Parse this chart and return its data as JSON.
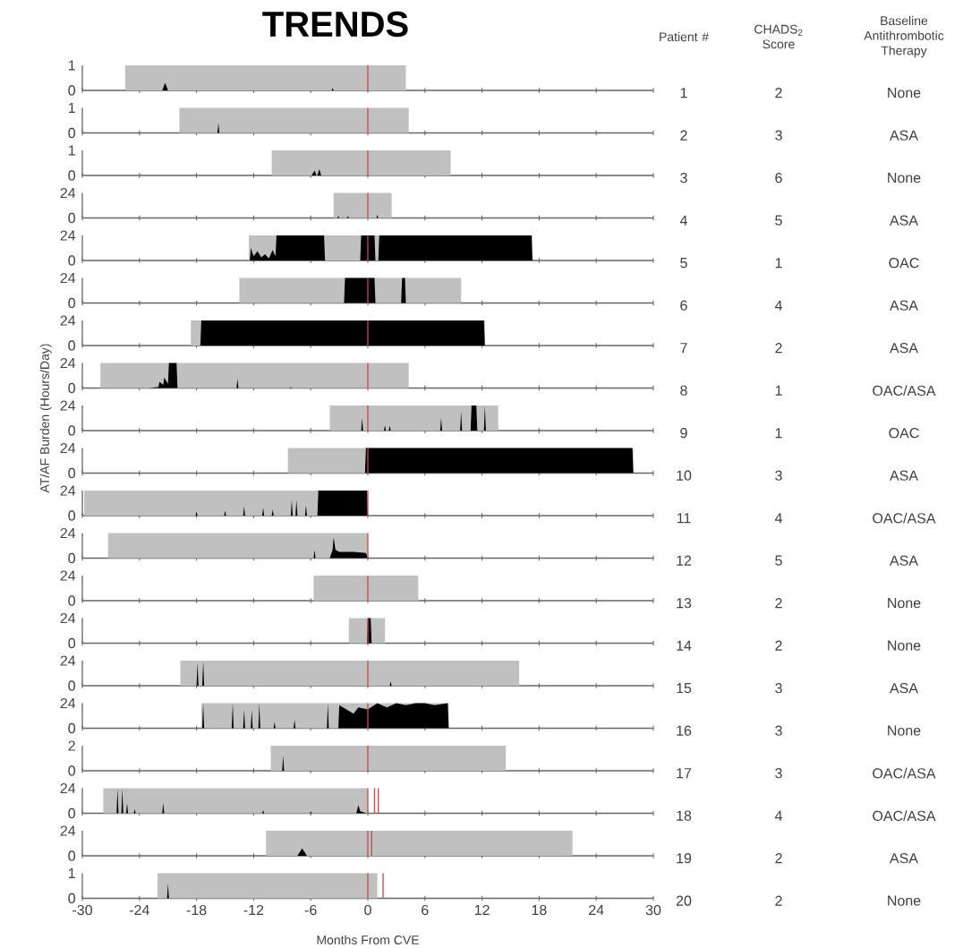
{
  "chart_data": [
    {
      "type": "area",
      "title": "TRENDS",
      "ylim": [
        0,
        1
      ],
      "yticks": [
        0,
        1
      ],
      "xlim": [
        -30,
        30
      ],
      "xticks": [
        -30,
        -24,
        -18,
        -12,
        -6,
        0,
        6,
        12,
        18,
        24,
        30
      ],
      "tick_labels": "y",
      "annotations": [
        "Patient #",
        "CHADS$_{2}$ Score",
        "Baseline Antithrombotic Therapy",
        "1",
        "2",
        "None"
      ],
      "bands": [
        {
          "axis": "x",
          "from": -25.5,
          "to": 4,
          "color": "#c0c0c0"
        }
      ],
      "ref_lines": [
        {
          "axis": "x",
          "value": 0,
          "color": "#c0504d"
        }
      ],
      "series": [
        {
          "color": "#000000",
          "x": [
            -21.6,
            -21.3,
            -21.0,
            -3.8,
            -3.7,
            -3.6
          ],
          "values": [
            0,
            0.3,
            0,
            0,
            0.1,
            0
          ]
        }
      ]
    },
    {
      "type": "area",
      "ylim": [
        0,
        1
      ],
      "yticks": [
        0,
        1
      ],
      "xlim": [
        -30,
        30
      ],
      "xticks": [
        -30,
        -24,
        -18,
        -12,
        -6,
        0,
        6,
        12,
        18,
        24,
        30
      ],
      "tick_labels": "y",
      "annotations": [
        "2",
        "3",
        "ASA"
      ],
      "bands": [
        {
          "axis": "x",
          "from": -19.8,
          "to": 4.3,
          "color": "#c0c0c0"
        }
      ],
      "ref_lines": [
        {
          "axis": "x",
          "value": 0,
          "color": "#c0504d"
        }
      ],
      "series": [
        {
          "color": "#000000",
          "x": [
            -15.8,
            -15.7,
            -15.6
          ],
          "values": [
            0,
            0.4,
            0
          ]
        }
      ]
    },
    {
      "type": "area",
      "ylim": [
        0,
        1
      ],
      "yticks": [
        0,
        1
      ],
      "xlim": [
        -30,
        30
      ],
      "xticks": [
        -30,
        -24,
        -18,
        -12,
        -6,
        0,
        6,
        12,
        18,
        24,
        30
      ],
      "tick_labels": "y",
      "annotations": [
        "3",
        "6",
        "None"
      ],
      "bands": [
        {
          "axis": "x",
          "from": -10.1,
          "to": 8.7,
          "color": "#c0c0c0"
        }
      ],
      "ref_lines": [
        {
          "axis": "x",
          "value": 0,
          "color": "#c0504d"
        }
      ],
      "series": [
        {
          "color": "#000000",
          "x": [
            -5.9,
            -5.6,
            -5.4,
            -5.3,
            -5.1,
            -4.9
          ],
          "values": [
            0,
            0.2,
            0,
            0,
            0.25,
            0
          ]
        }
      ]
    },
    {
      "type": "area",
      "ylim": [
        0,
        24
      ],
      "yticks": [
        0,
        24
      ],
      "xlim": [
        -30,
        30
      ],
      "xticks": [
        -30,
        -24,
        -18,
        -12,
        -6,
        0,
        6,
        12,
        18,
        24,
        30
      ],
      "tick_labels": "y",
      "annotations": [
        "4",
        "5",
        "ASA"
      ],
      "bands": [
        {
          "axis": "x",
          "from": -3.6,
          "to": 2.5,
          "color": "#c0c0c0"
        }
      ],
      "ref_lines": [
        {
          "axis": "x",
          "value": 0,
          "color": "#c0504d"
        }
      ],
      "series": [
        {
          "color": "#000000",
          "x": [
            -3.2,
            -3.1,
            -3.0,
            -2.2,
            -2.1,
            -2.0,
            0.9,
            1.0,
            1.1
          ],
          "values": [
            0,
            2,
            0,
            0,
            2,
            0,
            0,
            3,
            0
          ]
        }
      ]
    },
    {
      "type": "area",
      "ylim": [
        0,
        24
      ],
      "yticks": [
        0,
        24
      ],
      "xlim": [
        -30,
        30
      ],
      "xticks": [
        -30,
        -24,
        -18,
        -12,
        -6,
        0,
        6,
        12,
        18,
        24,
        30
      ],
      "tick_labels": "y",
      "annotations": [
        "5",
        "1",
        "OAC"
      ],
      "bands": [
        {
          "axis": "x",
          "from": -12.5,
          "to": 17.3,
          "color": "#c0c0c0"
        }
      ],
      "ref_lines": [
        {
          "axis": "x",
          "value": 0,
          "color": "#c0504d"
        }
      ],
      "series": [
        {
          "color": "#000000",
          "x": [
            -12.4,
            -12.3,
            -12.0,
            -11.6,
            -11.2,
            -10.8,
            -10.4,
            -10.0,
            -9.7,
            -9.6,
            -4.6,
            -4.5,
            -0.8,
            -0.7,
            0.7,
            0.8,
            1.1,
            1.2,
            17.2,
            17.3
          ],
          "values": [
            0,
            12,
            4,
            9,
            3,
            6,
            2,
            10,
            4,
            24,
            24,
            0,
            0,
            24,
            24,
            0,
            0,
            24,
            24,
            0
          ]
        }
      ]
    },
    {
      "type": "area",
      "ylim": [
        0,
        24
      ],
      "yticks": [
        0,
        24
      ],
      "xlim": [
        -30,
        30
      ],
      "xticks": [
        -30,
        -24,
        -18,
        -12,
        -6,
        0,
        6,
        12,
        18,
        24,
        30
      ],
      "tick_labels": "y",
      "annotations": [
        "6",
        "4",
        "ASA"
      ],
      "bands": [
        {
          "axis": "x",
          "from": -13.5,
          "to": 9.8,
          "color": "#c0c0c0"
        }
      ],
      "ref_lines": [
        {
          "axis": "x",
          "value": 0,
          "color": "#c0504d"
        }
      ],
      "series": [
        {
          "color": "#000000",
          "x": [
            -2.5,
            -2.4,
            0.7,
            0.8,
            3.5,
            3.6,
            3.9,
            4.0
          ],
          "values": [
            0,
            24,
            24,
            0,
            0,
            24,
            24,
            0
          ]
        }
      ]
    },
    {
      "type": "area",
      "ylim": [
        0,
        24
      ],
      "yticks": [
        0,
        24
      ],
      "xlim": [
        -30,
        30
      ],
      "xticks": [
        -30,
        -24,
        -18,
        -12,
        -6,
        0,
        6,
        12,
        18,
        24,
        30
      ],
      "tick_labels": "y",
      "annotations": [
        "7",
        "2",
        "ASA"
      ],
      "bands": [
        {
          "axis": "x",
          "from": -18.6,
          "to": 12.3,
          "color": "#c0c0c0"
        }
      ],
      "ref_lines": [
        {
          "axis": "x",
          "value": 0,
          "color": "#c0504d"
        }
      ],
      "series": [
        {
          "color": "#000000",
          "x": [
            -17.6,
            -17.5,
            12.2,
            12.3
          ],
          "values": [
            0,
            24,
            24,
            0
          ]
        }
      ]
    },
    {
      "type": "area",
      "ylim": [
        0,
        24
      ],
      "yticks": [
        0,
        24
      ],
      "xlim": [
        -30,
        30
      ],
      "xticks": [
        -30,
        -24,
        -18,
        -12,
        -6,
        0,
        6,
        12,
        18,
        24,
        30
      ],
      "tick_labels": "y",
      "annotations": [
        "8",
        "1",
        "OAC/ASA"
      ],
      "bands": [
        {
          "axis": "x",
          "from": -28.1,
          "to": 4.3,
          "color": "#c0c0c0"
        }
      ],
      "ref_lines": [
        {
          "axis": "x",
          "value": 0,
          "color": "#c0504d"
        }
      ],
      "series": [
        {
          "color": "#000000",
          "x": [
            -23.0,
            -22.0,
            -21.9,
            -21.5,
            -21.4,
            -21.0,
            -20.9,
            -20.1,
            -20.0,
            -13.8,
            -13.7,
            -13.6,
            -8.2,
            -8.1,
            -8.0
          ],
          "values": [
            0,
            1,
            6,
            3,
            10,
            4,
            24,
            24,
            0,
            0,
            9,
            0,
            0,
            1,
            0
          ]
        }
      ]
    },
    {
      "type": "area",
      "ylabel": "AT/AF Burden (Hours/Day)",
      "ylim": [
        0,
        24
      ],
      "yticks": [
        0,
        24
      ],
      "xlim": [
        -30,
        30
      ],
      "xticks": [
        -30,
        -24,
        -18,
        -12,
        -6,
        0,
        6,
        12,
        18,
        24,
        30
      ],
      "tick_labels": "y",
      "annotations": [
        "9",
        "1",
        "OAC"
      ],
      "bands": [
        {
          "axis": "x",
          "from": -4,
          "to": 13.7,
          "color": "#c0c0c0"
        }
      ],
      "ref_lines": [
        {
          "axis": "x",
          "value": 0,
          "color": "#c0504d"
        }
      ],
      "series": [
        {
          "color": "#000000",
          "x": [
            -0.7,
            -0.6,
            -0.5,
            1.7,
            1.8,
            1.9,
            2.2,
            2.3,
            2.4,
            7.6,
            7.7,
            7.8,
            9.7,
            9.8,
            9.9,
            10.8,
            10.9,
            11.4,
            11.5,
            12.2,
            12.3,
            12.4
          ],
          "values": [
            0,
            12,
            0,
            0,
            5,
            0,
            0,
            5,
            0,
            0,
            12,
            0,
            0,
            18,
            0,
            0,
            24,
            24,
            0,
            0,
            24,
            0
          ]
        }
      ]
    },
    {
      "type": "area",
      "ylim": [
        0,
        24
      ],
      "yticks": [
        0,
        24
      ],
      "xlim": [
        -30,
        30
      ],
      "xticks": [
        -30,
        -24,
        -18,
        -12,
        -6,
        0,
        6,
        12,
        18,
        24,
        30
      ],
      "tick_labels": "y",
      "annotations": [
        "10",
        "3",
        "ASA"
      ],
      "bands": [
        {
          "axis": "x",
          "from": -8.4,
          "to": 27.9,
          "color": "#c0c0c0"
        }
      ],
      "ref_lines": [
        {
          "axis": "x",
          "value": 0,
          "color": "#c0504d"
        }
      ],
      "series": [
        {
          "color": "#000000",
          "x": [
            -0.3,
            -0.2,
            27.8,
            27.9
          ],
          "values": [
            0,
            24,
            24,
            0
          ]
        }
      ]
    },
    {
      "type": "area",
      "ylim": [
        0,
        24
      ],
      "yticks": [
        0,
        24
      ],
      "xlim": [
        -30,
        30
      ],
      "xticks": [
        -30,
        -24,
        -18,
        -12,
        -6,
        0,
        6,
        12,
        18,
        24,
        30
      ],
      "tick_labels": "y",
      "annotations": [
        "11",
        "4",
        "OAC/ASA"
      ],
      "bands": [
        {
          "axis": "x",
          "from": -29.8,
          "to": 0,
          "color": "#c0c0c0"
        }
      ],
      "ref_lines": [
        {
          "axis": "x",
          "value": 0,
          "color": "#c0504d"
        }
      ],
      "series": [
        {
          "color": "#000000",
          "x": [
            -29.5,
            -18.1,
            -18.0,
            -17.9,
            -15.1,
            -15.0,
            -14.9,
            -13.1,
            -13.0,
            -12.9,
            -11.1,
            -11.0,
            -10.9,
            -10.1,
            -10.0,
            -9.9,
            -8.1,
            -8.0,
            -7.9,
            -7.6,
            -7.5,
            -7.4,
            -6.6,
            -6.5,
            -6.4,
            -5.3,
            -5.2,
            -0.1,
            0
          ],
          "values": [
            0,
            0,
            4,
            0,
            0,
            5,
            0,
            0,
            9,
            0,
            0,
            8,
            0,
            0,
            6,
            0,
            0,
            15,
            0,
            0,
            15,
            0,
            0,
            10,
            0,
            0,
            24,
            24,
            0
          ]
        }
      ]
    },
    {
      "type": "area",
      "ylim": [
        0,
        24
      ],
      "yticks": [
        0,
        24
      ],
      "xlim": [
        -30,
        30
      ],
      "xticks": [
        -30,
        -24,
        -18,
        -12,
        -6,
        0,
        6,
        12,
        18,
        24,
        30
      ],
      "tick_labels": "y",
      "annotations": [
        "12",
        "5",
        "ASA"
      ],
      "bands": [
        {
          "axis": "x",
          "from": -27.3,
          "to": 0,
          "color": "#c0c0c0"
        }
      ],
      "ref_lines": [
        {
          "axis": "x",
          "value": 0,
          "color": "#c0504d"
        }
      ],
      "series": [
        {
          "color": "#000000",
          "x": [
            -5.7,
            -5.6,
            -5.5,
            -4.0,
            -3.7,
            -3.6,
            -3.4,
            -3.0,
            -1.5,
            -0.2,
            0
          ],
          "values": [
            0,
            8,
            0,
            0,
            8,
            20,
            8,
            6,
            6,
            5,
            0
          ]
        }
      ]
    },
    {
      "type": "area",
      "ylim": [
        0,
        24
      ],
      "yticks": [
        0,
        24
      ],
      "xlim": [
        -30,
        30
      ],
      "xticks": [
        -30,
        -24,
        -18,
        -12,
        -6,
        0,
        6,
        12,
        18,
        24,
        30
      ],
      "tick_labels": "y",
      "annotations": [
        "13",
        "2",
        "None"
      ],
      "bands": [
        {
          "axis": "x",
          "from": -5.7,
          "to": 5.3,
          "color": "#c0c0c0"
        }
      ],
      "ref_lines": [
        {
          "axis": "x",
          "value": 0,
          "color": "#c0504d"
        }
      ]
    },
    {
      "type": "area",
      "ylim": [
        0,
        24
      ],
      "yticks": [
        0,
        24
      ],
      "xlim": [
        -30,
        30
      ],
      "xticks": [
        -30,
        -24,
        -18,
        -12,
        -6,
        0,
        6,
        12,
        18,
        24,
        30
      ],
      "tick_labels": "y",
      "annotations": [
        "14",
        "2",
        "None"
      ],
      "bands": [
        {
          "axis": "x",
          "from": -2,
          "to": 1.8,
          "color": "#c0c0c0"
        }
      ],
      "ref_lines": [
        {
          "axis": "x",
          "value": 0,
          "color": "#c0504d"
        }
      ],
      "series": [
        {
          "color": "#000000",
          "x": [
            -0.1,
            0,
            0.3,
            0.4
          ],
          "values": [
            0,
            24,
            24,
            0
          ]
        }
      ]
    },
    {
      "type": "area",
      "ylim": [
        0,
        24
      ],
      "yticks": [
        0,
        24
      ],
      "xlim": [
        -30,
        30
      ],
      "xticks": [
        -30,
        -24,
        -18,
        -12,
        -6,
        0,
        6,
        12,
        18,
        24,
        30
      ],
      "tick_labels": "y",
      "annotations": [
        "15",
        "3",
        "ASA"
      ],
      "bands": [
        {
          "axis": "x",
          "from": -19.7,
          "to": 15.9,
          "color": "#c0c0c0"
        }
      ],
      "ref_lines": [
        {
          "axis": "x",
          "value": 0,
          "color": "#c0504d"
        }
      ],
      "series": [
        {
          "color": "#000000",
          "x": [
            -18.0,
            -17.9,
            -17.8,
            -17.4,
            -17.3,
            -17.2,
            2.3,
            2.4,
            2.5
          ],
          "values": [
            0,
            22,
            0,
            0,
            24,
            0,
            0,
            4,
            0
          ]
        }
      ]
    },
    {
      "type": "area",
      "ylim": [
        0,
        24
      ],
      "yticks": [
        0,
        24
      ],
      "xlim": [
        -30,
        30
      ],
      "xticks": [
        -30,
        -24,
        -18,
        -12,
        -6,
        0,
        6,
        12,
        18,
        24,
        30
      ],
      "tick_labels": "y",
      "annotations": [
        "16",
        "3",
        "None"
      ],
      "bands": [
        {
          "axis": "x",
          "from": -17.5,
          "to": 8.5,
          "color": "#c0c0c0"
        }
      ],
      "ref_lines": [
        {
          "axis": "x",
          "value": 0,
          "color": "#c0504d"
        }
      ],
      "series": [
        {
          "color": "#000000",
          "x": [
            -17.4,
            -17.3,
            -17.2,
            -14.3,
            -14.2,
            -14.1,
            -13.1,
            -13.0,
            -12.9,
            -12.3,
            -12.2,
            -12.1,
            -11.5,
            -11.4,
            -11.3,
            -9.9,
            -9.8,
            -9.7,
            -7.8,
            -7.7,
            -7.6,
            -4.3,
            -4.2,
            -4.1,
            -3.1,
            -3.0,
            -1.5,
            -1.0,
            0,
            1.0,
            2.0,
            3.0,
            4.0,
            5.0,
            6.0,
            7.0,
            8.4,
            8.5
          ],
          "values": [
            0,
            24,
            0,
            0,
            24,
            0,
            0,
            18,
            0,
            0,
            18,
            0,
            0,
            24,
            0,
            0,
            6,
            0,
            0,
            8,
            0,
            0,
            24,
            0,
            0,
            22,
            14,
            20,
            18,
            24,
            20,
            24,
            22,
            24,
            24,
            22,
            24,
            0
          ]
        }
      ]
    },
    {
      "type": "area",
      "ylim": [
        0,
        2
      ],
      "yticks": [
        0,
        2
      ],
      "xlim": [
        -30,
        30
      ],
      "xticks": [
        -30,
        -24,
        -18,
        -12,
        -6,
        0,
        6,
        12,
        18,
        24,
        30
      ],
      "tick_labels": "y",
      "annotations": [
        "17",
        "3",
        "OAC/ASA"
      ],
      "bands": [
        {
          "axis": "x",
          "from": -10.2,
          "to": 14.5,
          "color": "#c0c0c0"
        }
      ],
      "ref_lines": [
        {
          "axis": "x",
          "value": 0,
          "color": "#c0504d"
        }
      ],
      "series": [
        {
          "color": "#000000",
          "x": [
            -9.0,
            -8.9,
            -8.8
          ],
          "values": [
            0,
            1.2,
            0
          ]
        }
      ]
    },
    {
      "type": "area",
      "ylim": [
        0,
        24
      ],
      "yticks": [
        0,
        24
      ],
      "xlim": [
        -30,
        30
      ],
      "xticks": [
        -30,
        -24,
        -18,
        -12,
        -6,
        0,
        6,
        12,
        18,
        24,
        30
      ],
      "tick_labels": "y",
      "annotations": [
        "18",
        "4",
        "OAC/ASA"
      ],
      "bands": [
        {
          "axis": "x",
          "from": -27.8,
          "to": 0,
          "color": "#c0c0c0"
        }
      ],
      "ref_lines": [
        {
          "axis": "x",
          "value": 0,
          "color": "#c0504d"
        },
        {
          "axis": "x",
          "value": 0.7,
          "color": "#c0504d"
        },
        {
          "axis": "x",
          "value": 1.1,
          "color": "#c0504d"
        }
      ],
      "series": [
        {
          "color": "#000000",
          "x": [
            -26.4,
            -26.3,
            -26.2,
            -25.9,
            -25.8,
            -25.7,
            -25.4,
            -25.3,
            -25.2,
            -24.6,
            -24.5,
            -24.4,
            -21.6,
            -21.5,
            -21.4,
            -11.1,
            -11.0,
            -10.9,
            -6.1,
            -6.0,
            -5.9,
            -1.2,
            -1.0,
            -0.8,
            -0.1
          ],
          "values": [
            0,
            24,
            0,
            0,
            24,
            0,
            0,
            10,
            0,
            0,
            4,
            0,
            0,
            10,
            0,
            0,
            3,
            0,
            0,
            2,
            0,
            0,
            8,
            2,
            0
          ]
        }
      ]
    },
    {
      "type": "area",
      "ylim": [
        0,
        24
      ],
      "yticks": [
        0,
        24
      ],
      "xlim": [
        -30,
        30
      ],
      "xticks": [
        -30,
        -24,
        -18,
        -12,
        -6,
        0,
        6,
        12,
        18,
        24,
        30
      ],
      "tick_labels": "y",
      "annotations": [
        "19",
        "2",
        "ASA"
      ],
      "bands": [
        {
          "axis": "x",
          "from": -10.7,
          "to": 21.5,
          "color": "#c0c0c0"
        }
      ],
      "ref_lines": [
        {
          "axis": "x",
          "value": 0,
          "color": "#c0504d"
        },
        {
          "axis": "x",
          "value": 0.4,
          "color": "#c0504d"
        }
      ],
      "series": [
        {
          "color": "#000000",
          "x": [
            -7.4,
            -6.9,
            -6.4
          ],
          "values": [
            0,
            7,
            0
          ]
        }
      ]
    },
    {
      "type": "area",
      "xlabel": "Months From CVE",
      "ylim": [
        0,
        1
      ],
      "yticks": [
        0,
        1
      ],
      "xlim": [
        -30,
        30
      ],
      "xticks": [
        -30,
        -24,
        -18,
        -12,
        -6,
        0,
        6,
        12,
        18,
        24,
        30
      ],
      "annotations": [
        "20",
        "2",
        "None"
      ],
      "bands": [
        {
          "axis": "x",
          "from": -22.1,
          "to": 1,
          "color": "#c0c0c0"
        }
      ],
      "ref_lines": [
        {
          "axis": "x",
          "value": 0,
          "color": "#c0504d"
        },
        {
          "axis": "x",
          "value": 1.6,
          "color": "#c0504d"
        }
      ],
      "series": [
        {
          "color": "#000000",
          "x": [
            -21.1,
            -21.0,
            -20.9
          ],
          "values": [
            0,
            0.6,
            0
          ]
        }
      ]
    }
  ]
}
